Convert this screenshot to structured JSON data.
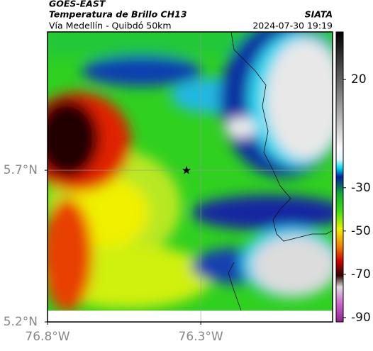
{
  "header": {
    "source": "GOES-EAST",
    "product": "Temperatura de Brillo CH13",
    "agency": "SIATA",
    "route": "Vía Medellín - Quibdó 50km",
    "datetime": "2024-07-30 19:19"
  },
  "map": {
    "xlim": [
      -76.8,
      -75.87
    ],
    "ylim": [
      5.2,
      6.156
    ],
    "xticks": [
      {
        "value": -76.8,
        "label": "76.8°W"
      },
      {
        "value": -76.3,
        "label": "76.3°W"
      }
    ],
    "yticks": [
      {
        "value": 5.2,
        "label": "5.2°N"
      },
      {
        "value": 5.7,
        "label": "5.7°N"
      }
    ],
    "grid": true
  },
  "colorbar": {
    "clim": [
      -92,
      42
    ],
    "ticks": [
      20,
      -30,
      -50,
      -70,
      -90
    ]
  }
}
